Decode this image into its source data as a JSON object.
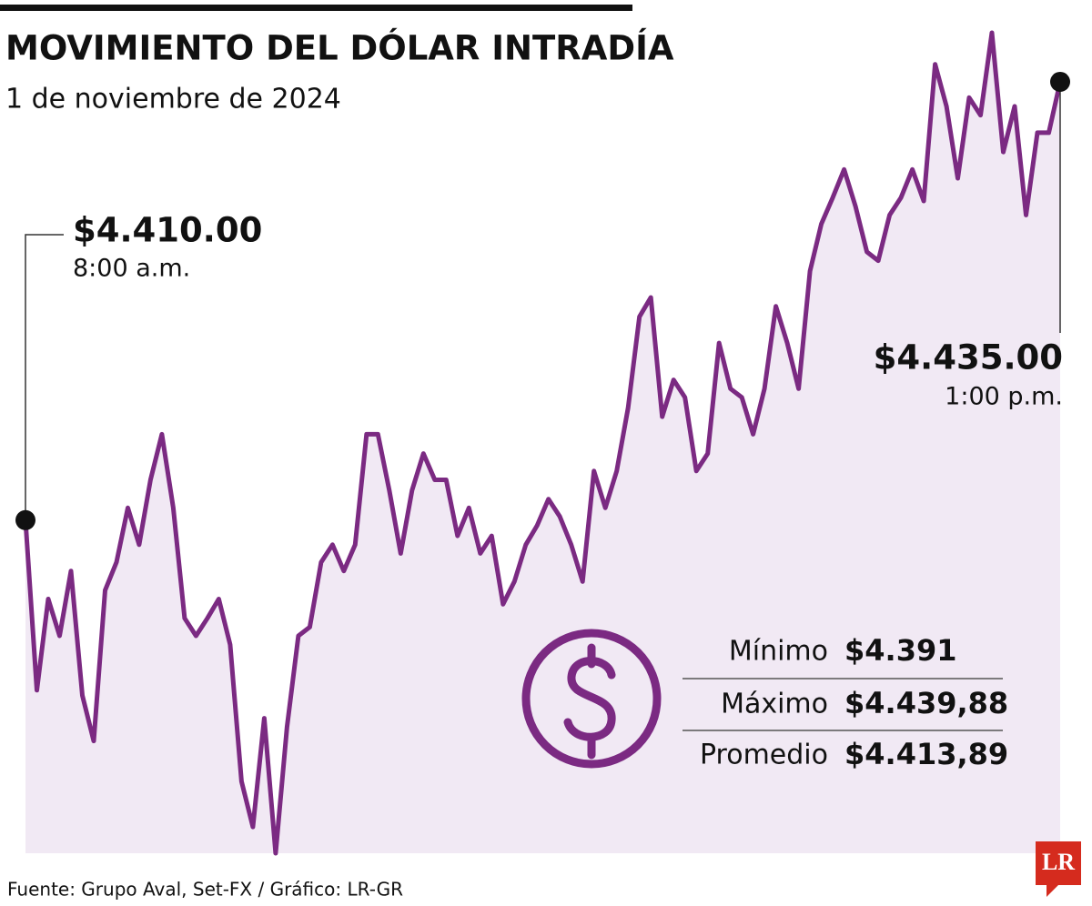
{
  "chart_data": {
    "type": "line",
    "title": "MOVIMIENTO DEL DÓLAR INTRADÍA",
    "subtitle": "1 de noviembre de 2024",
    "color": "#7b2a82",
    "area_color": "#f1e9f4",
    "ylim": [
      4391,
      4437.8
    ],
    "values": [
      4410,
      4400.3,
      4405.5,
      4403.4,
      4407.1,
      4400.0,
      4397.4,
      4406.0,
      4407.6,
      4410.7,
      4408.6,
      4412.3,
      4414.9,
      4410.7,
      4404.4,
      4403.4,
      4404.4,
      4405.5,
      4402.9,
      4395.1,
      4392.5,
      4398.7,
      4391,
      4398.2,
      4403.4,
      4403.9,
      4407.6,
      4408.6,
      4407.1,
      4408.6,
      4414.9,
      4414.9,
      4411.7,
      4408.1,
      4411.7,
      4413.8,
      4412.3,
      4412.3,
      4409.1,
      4410.7,
      4408.1,
      4409.1,
      4405.2,
      4406.5,
      4408.6,
      4409.7,
      4411.2,
      4410.2,
      4408.6,
      4406.5,
      4412.8,
      4410.7,
      4412.8,
      4416.4,
      4421.6,
      4422.7,
      4415.9,
      4418.0,
      4417.0,
      4412.8,
      4413.8,
      4420.1,
      4417.5,
      4417.0,
      4414.9,
      4417.5,
      4422.2,
      4420.1,
      4417.5,
      4424.2,
      4426.9,
      4428.4,
      4430.0,
      4427.9,
      4425.3,
      4424.8,
      4427.4,
      4428.4,
      4430.0,
      4428.2,
      4436.0,
      4433.6,
      4429.5,
      4434.1,
      4433.1,
      4437.8,
      4431.0,
      4433.6,
      4427.4,
      4432.1,
      4432.1,
      4435
    ],
    "annotations": [
      {
        "value_label": "$4.410.00",
        "time": "8:00 a.m."
      },
      {
        "value_label": "$4.435.00",
        "time": "1:00 p.m."
      }
    ],
    "stats": [
      {
        "label": "Mínimo",
        "value": "$4.391"
      },
      {
        "label": "Máximo",
        "value": "$4.439,88"
      },
      {
        "label": "Promedio",
        "value": "$4.413,89"
      }
    ],
    "source": "Fuente: Grupo Aval, Set-FX / Gráfico: LR-GR",
    "logo": "LR"
  }
}
